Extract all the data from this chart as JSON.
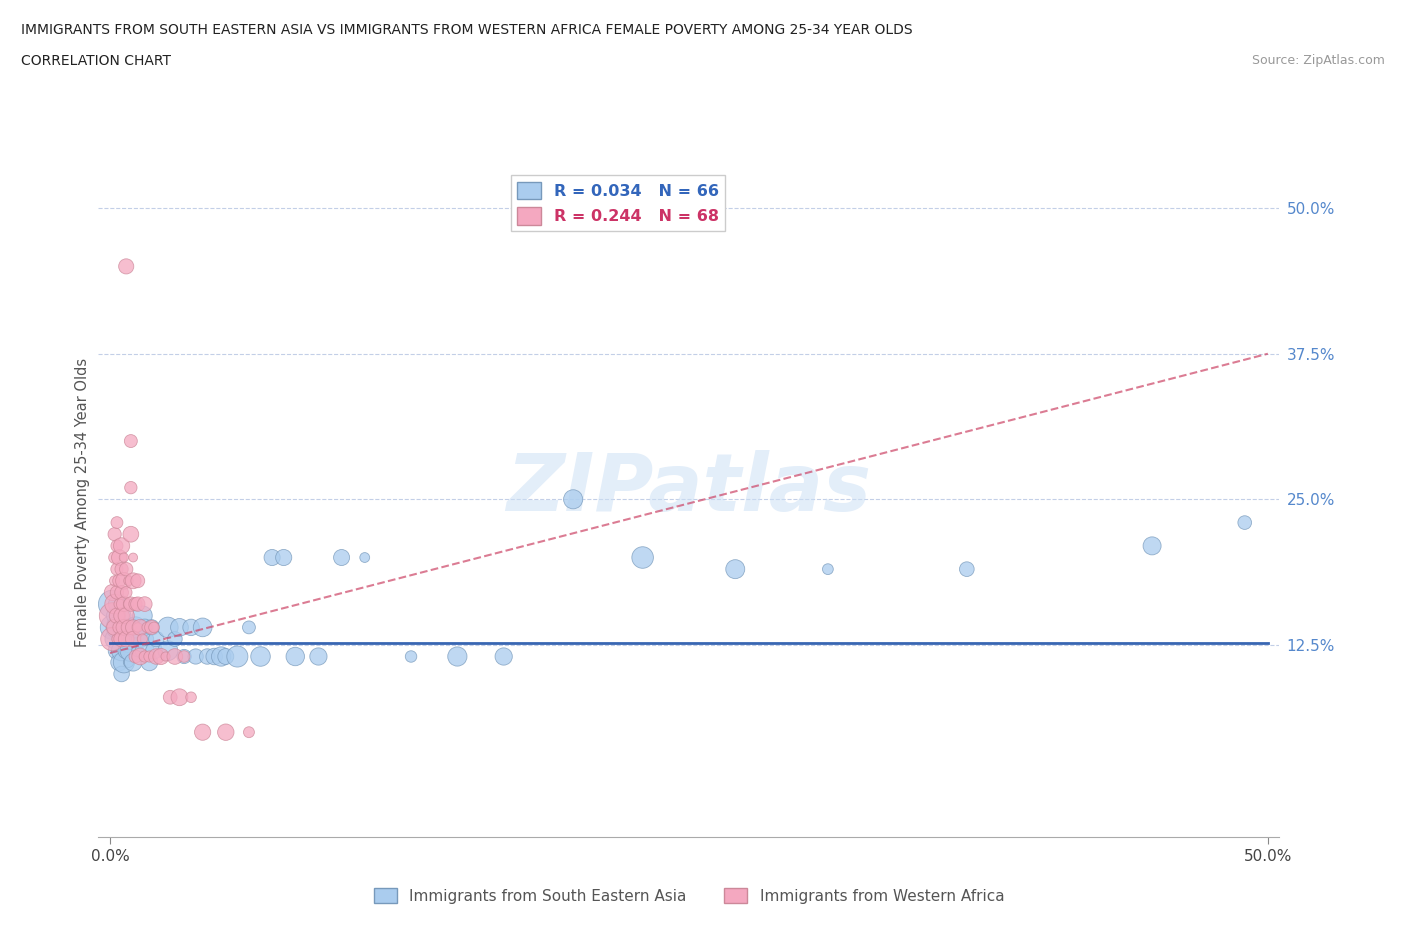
{
  "title_line1": "IMMIGRANTS FROM SOUTH EASTERN ASIA VS IMMIGRANTS FROM WESTERN AFRICA FEMALE POVERTY AMONG 25-34 YEAR OLDS",
  "title_line2": "CORRELATION CHART",
  "source_text": "Source: ZipAtlas.com",
  "ylabel": "Female Poverty Among 25-34 Year Olds",
  "xlim": [
    -0.005,
    0.505
  ],
  "ylim": [
    -0.04,
    0.535
  ],
  "ytick_positions": [
    0.125,
    0.25,
    0.375,
    0.5
  ],
  "ytick_labels": [
    "12.5%",
    "25.0%",
    "37.5%",
    "50.0%"
  ],
  "watermark": "ZIPatlas",
  "legend_label1": "Immigrants from South Eastern Asia",
  "legend_label2": "Immigrants from Western Africa",
  "blue_color": "#aaccee",
  "pink_color": "#f4a8c0",
  "blue_edge_color": "#7799bb",
  "pink_edge_color": "#cc8899",
  "blue_line_color": "#2255aa",
  "pink_line_color": "#cc4466",
  "blue_scatter": [
    [
      0.001,
      0.16
    ],
    [
      0.001,
      0.14
    ],
    [
      0.002,
      0.15
    ],
    [
      0.002,
      0.13
    ],
    [
      0.003,
      0.14
    ],
    [
      0.003,
      0.12
    ],
    [
      0.003,
      0.16
    ],
    [
      0.004,
      0.15
    ],
    [
      0.004,
      0.13
    ],
    [
      0.004,
      0.11
    ],
    [
      0.005,
      0.14
    ],
    [
      0.005,
      0.12
    ],
    [
      0.005,
      0.1
    ],
    [
      0.006,
      0.13
    ],
    [
      0.006,
      0.15
    ],
    [
      0.006,
      0.11
    ],
    [
      0.007,
      0.14
    ],
    [
      0.007,
      0.12
    ],
    [
      0.008,
      0.13
    ],
    [
      0.008,
      0.11
    ],
    [
      0.009,
      0.14
    ],
    [
      0.009,
      0.12
    ],
    [
      0.01,
      0.13
    ],
    [
      0.01,
      0.11
    ],
    [
      0.011,
      0.14
    ],
    [
      0.012,
      0.12
    ],
    [
      0.013,
      0.13
    ],
    [
      0.014,
      0.15
    ],
    [
      0.015,
      0.12
    ],
    [
      0.015,
      0.14
    ],
    [
      0.016,
      0.13
    ],
    [
      0.017,
      0.11
    ],
    [
      0.018,
      0.14
    ],
    [
      0.019,
      0.12
    ],
    [
      0.02,
      0.13
    ],
    [
      0.025,
      0.14
    ],
    [
      0.025,
      0.12
    ],
    [
      0.028,
      0.13
    ],
    [
      0.03,
      0.14
    ],
    [
      0.032,
      0.115
    ],
    [
      0.035,
      0.14
    ],
    [
      0.037,
      0.115
    ],
    [
      0.04,
      0.14
    ],
    [
      0.042,
      0.115
    ],
    [
      0.045,
      0.115
    ],
    [
      0.048,
      0.115
    ],
    [
      0.05,
      0.115
    ],
    [
      0.055,
      0.115
    ],
    [
      0.06,
      0.14
    ],
    [
      0.065,
      0.115
    ],
    [
      0.07,
      0.2
    ],
    [
      0.075,
      0.2
    ],
    [
      0.08,
      0.115
    ],
    [
      0.09,
      0.115
    ],
    [
      0.1,
      0.2
    ],
    [
      0.11,
      0.2
    ],
    [
      0.13,
      0.115
    ],
    [
      0.15,
      0.115
    ],
    [
      0.17,
      0.115
    ],
    [
      0.2,
      0.25
    ],
    [
      0.23,
      0.2
    ],
    [
      0.27,
      0.19
    ],
    [
      0.31,
      0.19
    ],
    [
      0.37,
      0.19
    ],
    [
      0.45,
      0.21
    ],
    [
      0.49,
      0.23
    ]
  ],
  "pink_scatter": [
    [
      0.001,
      0.15
    ],
    [
      0.001,
      0.13
    ],
    [
      0.001,
      0.17
    ],
    [
      0.002,
      0.16
    ],
    [
      0.002,
      0.14
    ],
    [
      0.002,
      0.18
    ],
    [
      0.002,
      0.2
    ],
    [
      0.002,
      0.22
    ],
    [
      0.003,
      0.15
    ],
    [
      0.003,
      0.17
    ],
    [
      0.003,
      0.13
    ],
    [
      0.003,
      0.19
    ],
    [
      0.003,
      0.21
    ],
    [
      0.003,
      0.23
    ],
    [
      0.004,
      0.16
    ],
    [
      0.004,
      0.14
    ],
    [
      0.004,
      0.18
    ],
    [
      0.004,
      0.2
    ],
    [
      0.005,
      0.15
    ],
    [
      0.005,
      0.17
    ],
    [
      0.005,
      0.19
    ],
    [
      0.005,
      0.13
    ],
    [
      0.005,
      0.21
    ],
    [
      0.006,
      0.16
    ],
    [
      0.006,
      0.14
    ],
    [
      0.006,
      0.18
    ],
    [
      0.006,
      0.2
    ],
    [
      0.007,
      0.15
    ],
    [
      0.007,
      0.17
    ],
    [
      0.007,
      0.19
    ],
    [
      0.007,
      0.13
    ],
    [
      0.007,
      0.45
    ],
    [
      0.008,
      0.16
    ],
    [
      0.008,
      0.14
    ],
    [
      0.008,
      0.18
    ],
    [
      0.009,
      0.26
    ],
    [
      0.009,
      0.22
    ],
    [
      0.009,
      0.3
    ],
    [
      0.009,
      0.16
    ],
    [
      0.01,
      0.14
    ],
    [
      0.01,
      0.18
    ],
    [
      0.01,
      0.13
    ],
    [
      0.01,
      0.2
    ],
    [
      0.011,
      0.115
    ],
    [
      0.011,
      0.16
    ],
    [
      0.012,
      0.14
    ],
    [
      0.012,
      0.18
    ],
    [
      0.012,
      0.16
    ],
    [
      0.013,
      0.14
    ],
    [
      0.013,
      0.115
    ],
    [
      0.014,
      0.13
    ],
    [
      0.015,
      0.115
    ],
    [
      0.015,
      0.16
    ],
    [
      0.016,
      0.14
    ],
    [
      0.017,
      0.115
    ],
    [
      0.018,
      0.14
    ],
    [
      0.019,
      0.14
    ],
    [
      0.02,
      0.115
    ],
    [
      0.022,
      0.115
    ],
    [
      0.024,
      0.115
    ],
    [
      0.026,
      0.08
    ],
    [
      0.028,
      0.115
    ],
    [
      0.03,
      0.08
    ],
    [
      0.032,
      0.115
    ],
    [
      0.035,
      0.08
    ],
    [
      0.04,
      0.05
    ],
    [
      0.05,
      0.05
    ],
    [
      0.06,
      0.05
    ]
  ],
  "blue_line_x": [
    0.0,
    0.5
  ],
  "blue_line_y": [
    0.127,
    0.127
  ],
  "pink_line_x": [
    0.0,
    0.5
  ],
  "pink_line_y": [
    0.118,
    0.375
  ]
}
